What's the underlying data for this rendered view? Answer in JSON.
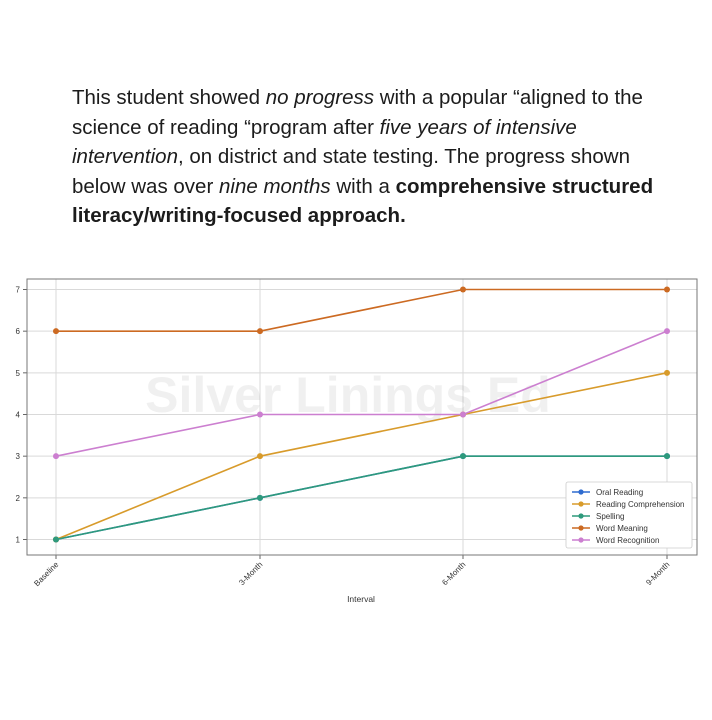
{
  "caption": {
    "p1": "This student showed ",
    "p2": "no progress",
    "p3": " with a popular “aligned to the science of reading “program after ",
    "p4": "five years of intensive intervention",
    "p5": ", on district and state testing. The progress shown below was over ",
    "p6": "nine months",
    "p7": " with a ",
    "p8": "comprehensive structured literacy/writing-focused approach."
  },
  "watermark": "Silver Linings Ed",
  "chart_data": {
    "type": "line",
    "categories": [
      "Baseline",
      "3-Month",
      "6-Month",
      "9-Month"
    ],
    "xlabel": "Interval",
    "ylabel": "",
    "ylim": [
      1,
      7
    ],
    "yticks": [
      1,
      2,
      3,
      4,
      5,
      6,
      7
    ],
    "grid": true,
    "legend_position": "bottom-right",
    "series": [
      {
        "name": "Oral Reading",
        "color": "#2e6bcf",
        "values": [
          1,
          2,
          3,
          3
        ]
      },
      {
        "name": "Reading Comprehension",
        "color": "#d89b2b",
        "values": [
          1,
          3,
          4,
          5
        ]
      },
      {
        "name": "Spelling",
        "color": "#2e9a7c",
        "values": [
          1,
          2,
          3,
          3
        ]
      },
      {
        "name": "Word Meaning",
        "color": "#cc6a22",
        "values": [
          6,
          6,
          7,
          7
        ]
      },
      {
        "name": "Word Recognition",
        "color": "#cc7fd0",
        "values": [
          3,
          4,
          4,
          6
        ]
      }
    ]
  }
}
